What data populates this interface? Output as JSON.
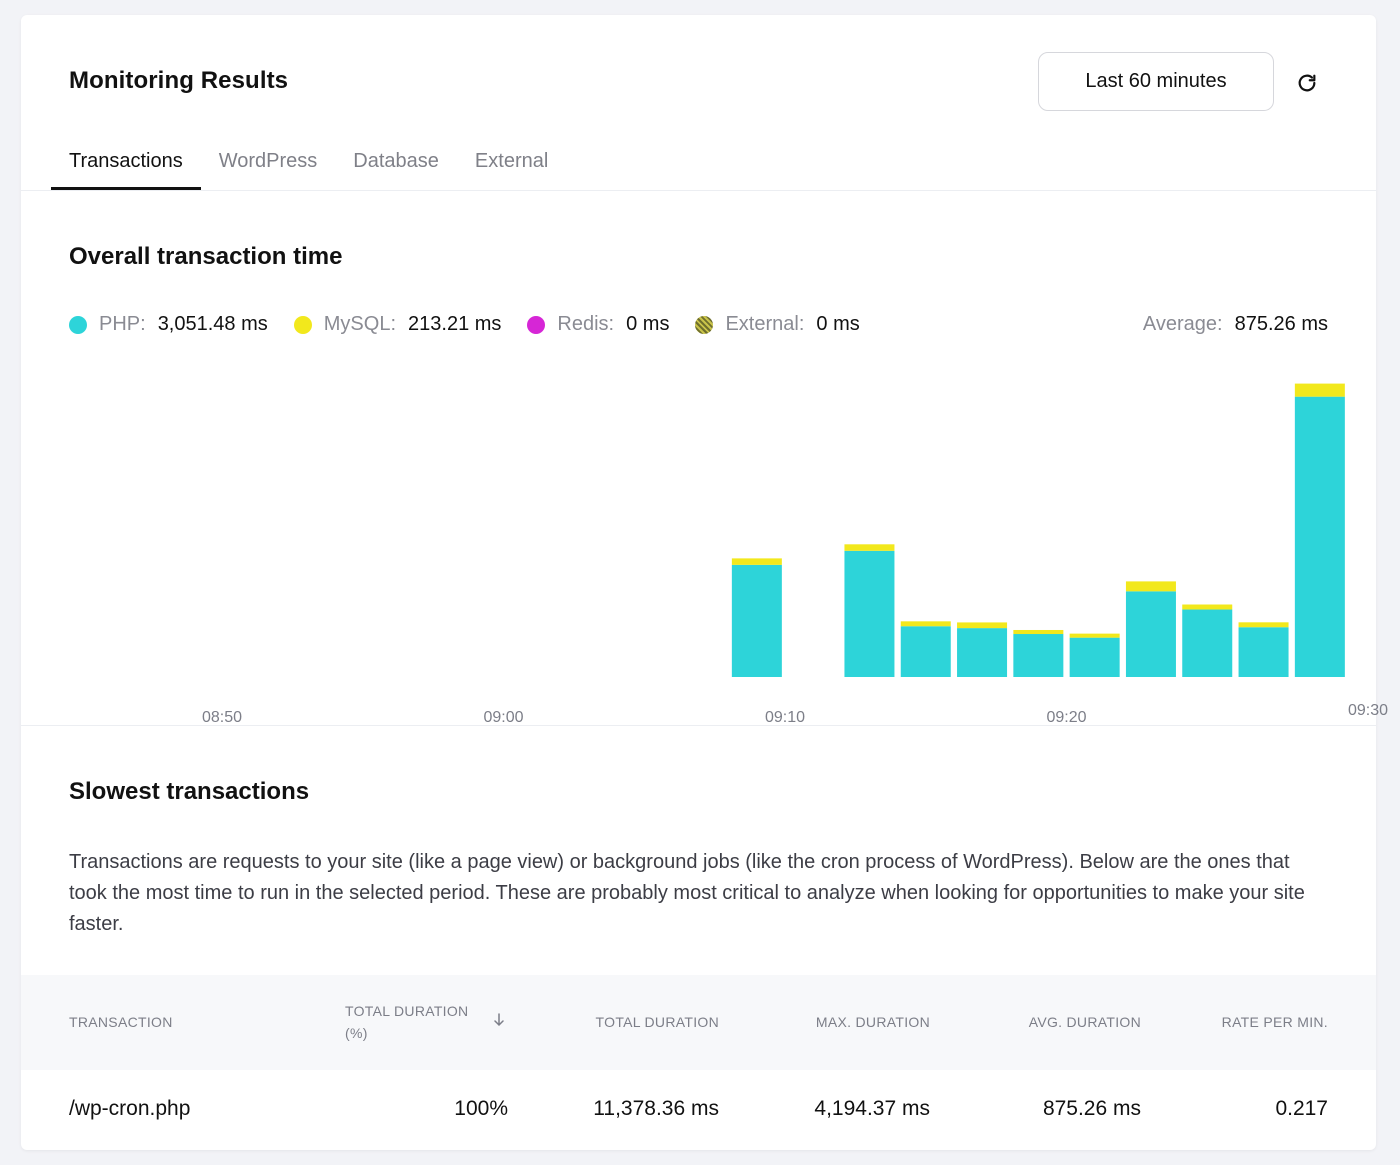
{
  "header": {
    "title": "Monitoring Results",
    "range_label": "Last 60 minutes"
  },
  "tabs": [
    {
      "label": "Transactions",
      "active": true
    },
    {
      "label": "WordPress",
      "active": false
    },
    {
      "label": "Database",
      "active": false
    },
    {
      "label": "External",
      "active": false
    }
  ],
  "overall": {
    "title": "Overall transaction time",
    "legend": [
      {
        "label": "PHP:",
        "value": "3,051.48 ms",
        "color": "#2dd4d9"
      },
      {
        "label": "MySQL:",
        "value": "213.21 ms",
        "color": "#f2e81c"
      },
      {
        "label": "Redis:",
        "value": "0 ms",
        "color": "#d626d6"
      },
      {
        "label": "External:",
        "value": "0 ms",
        "color": "#9a9a4a"
      }
    ],
    "average_label": "Average:",
    "average_value": "875.26 ms"
  },
  "chart_data": {
    "type": "bar",
    "stacked": true,
    "x_ticks": [
      "08:50",
      "09:00",
      "09:10",
      "09:20",
      "09:30"
    ],
    "x_tick_minutes": [
      -40,
      -30,
      -20,
      -10,
      0
    ],
    "bar_minutes": [
      -21,
      -17,
      -15,
      -13,
      -11,
      -9,
      -7,
      -5,
      -3,
      -1
    ],
    "series": [
      {
        "name": "PHP",
        "color": "#2dd4d9",
        "values": [
          1140,
          1283,
          516,
          497,
          437,
          400,
          871,
          686,
          506,
          2850
        ]
      },
      {
        "name": "MySQL",
        "color": "#f2e81c",
        "values": [
          66,
          66,
          50,
          58,
          41,
          41,
          101,
          51,
          50,
          133
        ]
      }
    ],
    "ylim": [
      0,
      3050
    ]
  },
  "slowest": {
    "title": "Slowest transactions",
    "description": "Transactions are requests to your site (like a page view) or background jobs (like the cron process of WordPress). Below are the ones that took the most time to run in the selected period. These are probably most critical to analyze when looking for opportunities to make your site faster.",
    "columns": {
      "transaction": "TRANSACTION",
      "total_pct_line1": "TOTAL DURATION",
      "total_pct_line2": "(%)",
      "total": "TOTAL DURATION",
      "max": "MAX. DURATION",
      "avg": "AVG. DURATION",
      "rate": "RATE PER MIN."
    },
    "rows": [
      {
        "transaction": "/wp-cron.php",
        "total_pct": "100%",
        "total": "11,378.36 ms",
        "max": "4,194.37 ms",
        "avg": "875.26 ms",
        "rate": "0.217"
      }
    ]
  }
}
